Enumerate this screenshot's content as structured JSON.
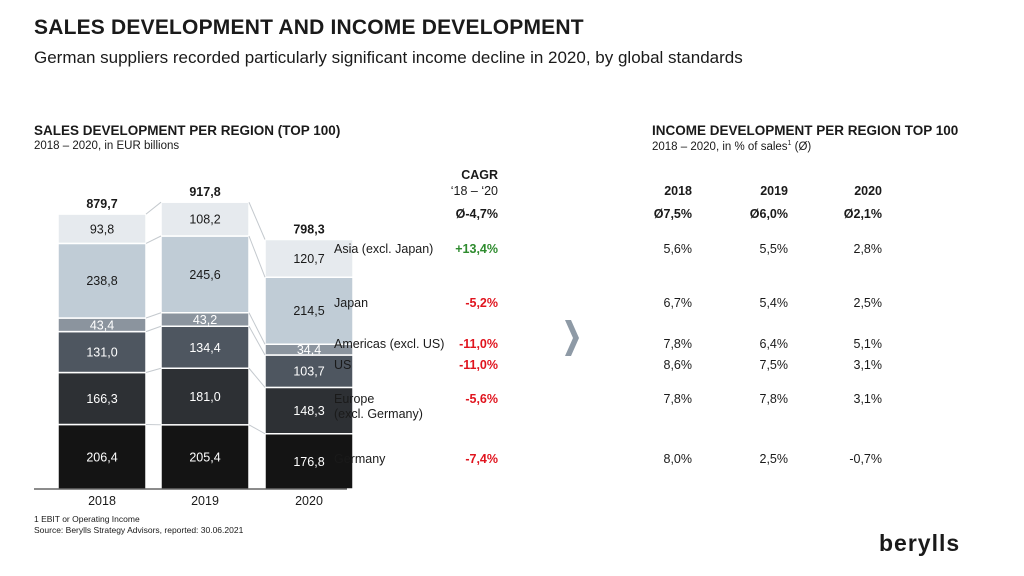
{
  "title": "SALES DEVELOPMENT AND INCOME DEVELOPMENT",
  "subtitle": "German suppliers recorded particularly significant income decline in 2020, by global standards",
  "left_section": {
    "title": "SALES DEVELOPMENT PER REGION (TOP 100)",
    "subtitle": "2018 – 2020, in EUR billions"
  },
  "cagr_header": {
    "line1": "CAGR",
    "line2": "‘18 – ‘20",
    "total": "Ø-4,7%"
  },
  "right_section": {
    "title": "INCOME DEVELOPMENT PER REGION TOP 100",
    "subtitle_pre": "2018 – 2020, in % of sales",
    "subtitle_sup": "1",
    "subtitle_post": " (Ø)"
  },
  "income_headers": [
    "2018",
    "2019",
    "2020"
  ],
  "income_totals": [
    "Ø7,5%",
    "Ø6,0%",
    "Ø2,1%"
  ],
  "regions": [
    {
      "name": "Asia (excl. Japan)",
      "cagr": "+13,4%",
      "cagr_sign": "pos",
      "income": [
        "5,6%",
        "5,5%",
        "2,8%"
      ]
    },
    {
      "name": "Japan",
      "cagr": "-5,2%",
      "cagr_sign": "neg",
      "income": [
        "6,7%",
        "5,4%",
        "2,5%"
      ]
    },
    {
      "name": "Americas (excl. US)",
      "cagr": "-11,0%",
      "cagr_sign": "neg",
      "income": [
        "7,8%",
        "6,4%",
        "5,1%"
      ]
    },
    {
      "name": "US",
      "cagr": "-11,0%",
      "cagr_sign": "neg",
      "income": [
        "8,6%",
        "7,5%",
        "3,1%"
      ]
    },
    {
      "name": "Europe",
      "name2": "(excl. Germany)",
      "cagr": "-5,6%",
      "cagr_sign": "neg",
      "income": [
        "7,8%",
        "7,8%",
        "3,1%"
      ]
    },
    {
      "name": "Germany",
      "cagr": "-7,4%",
      "cagr_sign": "neg",
      "income": [
        "8,0%",
        "2,5%",
        "-0,7%"
      ]
    }
  ],
  "chart_data": {
    "type": "bar",
    "stacked": true,
    "title": "SALES DEVELOPMENT PER REGION (TOP 100)",
    "ylabel": "EUR billions",
    "categories": [
      "2018",
      "2019",
      "2020"
    ],
    "totals": [
      879.7,
      917.8,
      798.3
    ],
    "total_labels": [
      "879,7",
      "917,8",
      "798,3"
    ],
    "series": [
      {
        "name": "Germany",
        "color": "#141414",
        "values": [
          206.4,
          205.4,
          176.8
        ],
        "labels": [
          "206,4",
          "205,4",
          "176,8"
        ]
      },
      {
        "name": "Europe (excl. Germany)",
        "color": "#2d3034",
        "values": [
          166.3,
          181.0,
          148.3
        ],
        "labels": [
          "166,3",
          "181,0",
          "148,3"
        ]
      },
      {
        "name": "US",
        "color": "#4e5660",
        "values": [
          131.0,
          134.4,
          103.7
        ],
        "labels": [
          "131,0",
          "134,4",
          "103,7"
        ]
      },
      {
        "name": "Americas (excl. US)",
        "color": "#8b949e",
        "values": [
          43.4,
          43.2,
          34.4
        ],
        "labels": [
          "43,4",
          "43,2",
          "34,4"
        ]
      },
      {
        "name": "Japan",
        "color": "#c0ccd6",
        "values": [
          238.8,
          245.6,
          214.5
        ],
        "labels": [
          "238,8",
          "245,6",
          "214,5"
        ]
      },
      {
        "name": "Asia (excl. Japan)",
        "color": "#e6eaee",
        "values": [
          93.8,
          108.2,
          120.7
        ],
        "labels": [
          "93,8",
          "108,2",
          "120,7"
        ]
      }
    ]
  },
  "footnote": {
    "line1": "1 EBIT or Operating Income",
    "line2": "Source: Berylls Strategy Advisors, reported: 30.06.2021"
  },
  "logo": "berylls"
}
